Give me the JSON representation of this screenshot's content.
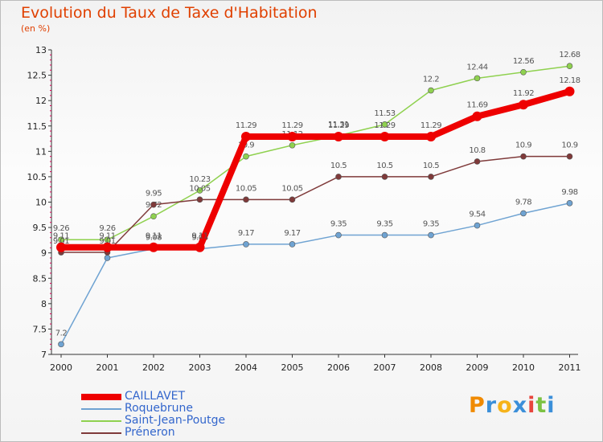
{
  "title": "Evolution du Taux de Taxe d'Habitation",
  "subtitle": "(en %)",
  "logo": {
    "letters": [
      "P",
      "r",
      "o",
      "x",
      "i",
      "t",
      "i"
    ],
    "colors": [
      "#f08a00",
      "#3b8fd9",
      "#f6b31a",
      "#3b8fd9",
      "#e8453c",
      "#7cc242",
      "#3b8fd9"
    ]
  },
  "chart_data": {
    "type": "line",
    "x": [
      "2000",
      "2001",
      "2002",
      "2003",
      "2004",
      "2005",
      "2006",
      "2007",
      "2008",
      "2009",
      "2010",
      "2011"
    ],
    "ylim": [
      7,
      13
    ],
    "yticks": [
      "7",
      "7.5",
      "8",
      "8.5",
      "9",
      "9.5",
      "10",
      "10.5",
      "11",
      "11.5",
      "12",
      "12.5",
      "13"
    ],
    "grid": false,
    "legend_position": "bottom-left",
    "series": [
      {
        "name": "CAILLAVET",
        "color": "#ee0000",
        "width": 8,
        "values": [
          9.11,
          9.11,
          9.11,
          9.11,
          11.29,
          11.29,
          11.29,
          11.29,
          11.29,
          11.69,
          11.92,
          12.18
        ],
        "labels": [
          "9.11",
          "9.11",
          "9.11",
          "9.11",
          "11.29",
          "11.29",
          "11.29",
          "11.29",
          "11.29",
          "11.69",
          "11.92",
          "12.18"
        ]
      },
      {
        "name": "Roquebrune",
        "color": "#6fa3d2",
        "width": 1.5,
        "values": [
          7.2,
          8.9,
          9.08,
          9.08,
          9.17,
          9.17,
          9.35,
          9.35,
          9.35,
          9.54,
          9.78,
          9.98
        ],
        "labels": [
          "7.2",
          "",
          "9.08",
          "9.08",
          "9.17",
          "9.17",
          "9.35",
          "9.35",
          "9.35",
          "9.54",
          "9.78",
          "9.98"
        ]
      },
      {
        "name": "Saint-Jean-Poutge",
        "color": "#8fd14f",
        "width": 1.5,
        "values": [
          9.26,
          9.26,
          9.72,
          10.23,
          10.9,
          11.12,
          11.31,
          11.53,
          12.2,
          12.44,
          12.56,
          12.68
        ],
        "labels": [
          "9.26",
          "9.26",
          "9.72",
          "10.23",
          "10.9",
          "11.12",
          "11.31",
          "11.53",
          "12.2",
          "12.44",
          "12.56",
          "12.68"
        ]
      },
      {
        "name": "Préneron",
        "color": "#7f3a3a",
        "width": 1.5,
        "values": [
          9.01,
          9.01,
          9.95,
          10.05,
          10.05,
          10.05,
          10.5,
          10.5,
          10.5,
          10.8,
          10.9,
          10.9
        ],
        "labels": [
          "9.01",
          "9.01",
          "9.95",
          "10.05",
          "10.05",
          "10.05",
          "10.5",
          "10.5",
          "10.5",
          "10.8",
          "10.9",
          "10.9"
        ]
      }
    ]
  }
}
